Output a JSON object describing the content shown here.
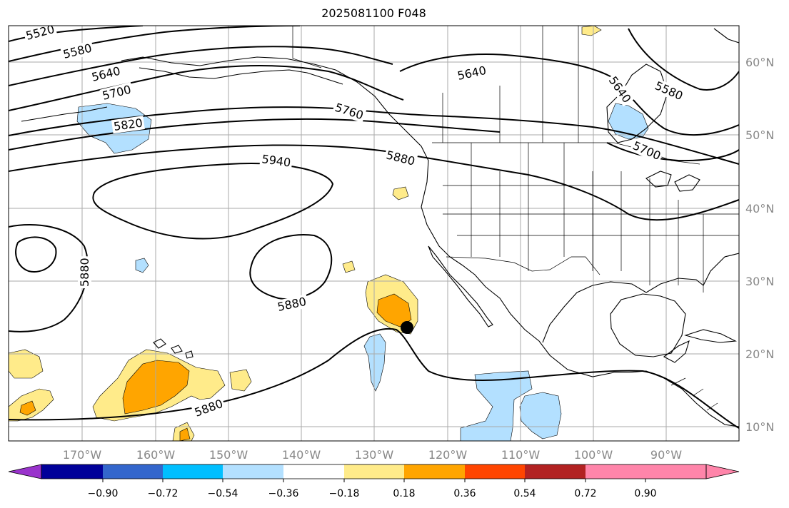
{
  "title": "2025081100 F048",
  "map": {
    "lon_ticks": [
      "170°W",
      "160°W",
      "150°W",
      "140°W",
      "130°W",
      "120°W",
      "110°W",
      "100°W",
      "90°W"
    ],
    "lat_ticks": [
      "10°N",
      "20°N",
      "30°N",
      "40°N",
      "50°N",
      "60°N"
    ],
    "contour_labels": [
      "5520",
      "5580",
      "5640",
      "5700",
      "5820",
      "5760",
      "5940",
      "5880",
      "5640",
      "5580",
      "5640",
      "5700",
      "5880",
      "5880",
      "5880"
    ],
    "marker": "black-dot"
  },
  "colorbar": {
    "colors": [
      "#9933cc",
      "#000099",
      "#3366cc",
      "#00bfff",
      "#b3e0ff",
      "#ffffff",
      "#ffeb8a",
      "#ffa500",
      "#ff4500",
      "#b22222",
      "#ff85aa"
    ],
    "labels": [
      "−0.90",
      "−0.72",
      "−0.54",
      "−0.36",
      "−0.18",
      "0.18",
      "0.36",
      "0.54",
      "0.72",
      "0.90"
    ]
  }
}
